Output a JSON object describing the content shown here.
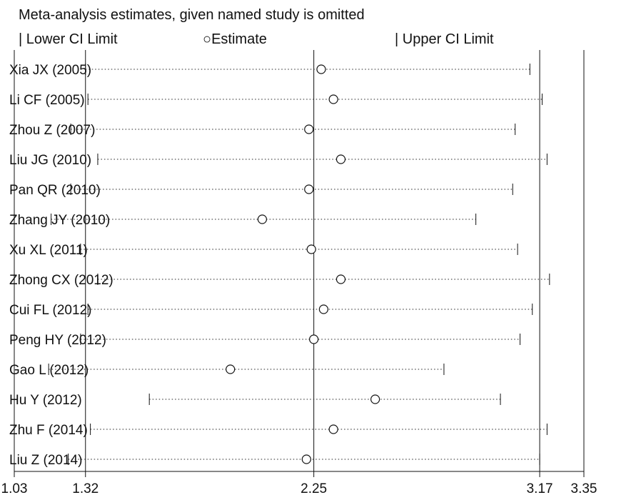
{
  "chart_data": {
    "type": "scatter",
    "title": "Meta-analysis estimates, given named study is omitted",
    "legend": {
      "lower_label": "Lower CI Limit",
      "estimate_label": "Estimate",
      "upper_label": "Upper CI Limit",
      "position": "top"
    },
    "xlim": [
      1.03,
      3.35
    ],
    "xticks": [
      "1.03",
      "1.32",
      "2.25",
      "3.17",
      "3.35"
    ],
    "reference_lines": [
      1.32,
      2.25,
      3.17
    ],
    "studies": [
      {
        "label": "Xia JX (2005)",
        "lower": 1.32,
        "estimate": 2.28,
        "upper": 3.13
      },
      {
        "label": "Li CF (2005)",
        "lower": 1.33,
        "estimate": 2.33,
        "upper": 3.18
      },
      {
        "label": "Zhou Z (2007)",
        "lower": 1.26,
        "estimate": 2.23,
        "upper": 3.07
      },
      {
        "label": "Liu JG (2010)",
        "lower": 1.37,
        "estimate": 2.36,
        "upper": 3.2
      },
      {
        "label": "Pan QR (2010)",
        "lower": 1.26,
        "estimate": 2.23,
        "upper": 3.06
      },
      {
        "label": "Zhang JY (2010)",
        "lower": 1.18,
        "estimate": 2.04,
        "upper": 2.91
      },
      {
        "label": "Xu XL (2011)",
        "lower": 1.3,
        "estimate": 2.24,
        "upper": 3.08
      },
      {
        "label": "Zhong CX (2012)",
        "lower": 1.37,
        "estimate": 2.36,
        "upper": 3.21
      },
      {
        "label": "Cui FL (2012)",
        "lower": 1.33,
        "estimate": 2.29,
        "upper": 3.14
      },
      {
        "label": "Peng HY (2012)",
        "lower": 1.3,
        "estimate": 2.25,
        "upper": 3.09
      },
      {
        "label": "Gao L (2012)",
        "lower": 1.17,
        "estimate": 1.91,
        "upper": 2.78
      },
      {
        "label": "Hu Y (2012)",
        "lower": 1.58,
        "estimate": 2.5,
        "upper": 3.01
      },
      {
        "label": "Zhu F (2014)",
        "lower": 1.34,
        "estimate": 2.33,
        "upper": 3.2
      },
      {
        "label": "Liu Z (2014)",
        "lower": 1.25,
        "estimate": 2.22,
        "upper": 3.17
      }
    ],
    "grid": false
  }
}
